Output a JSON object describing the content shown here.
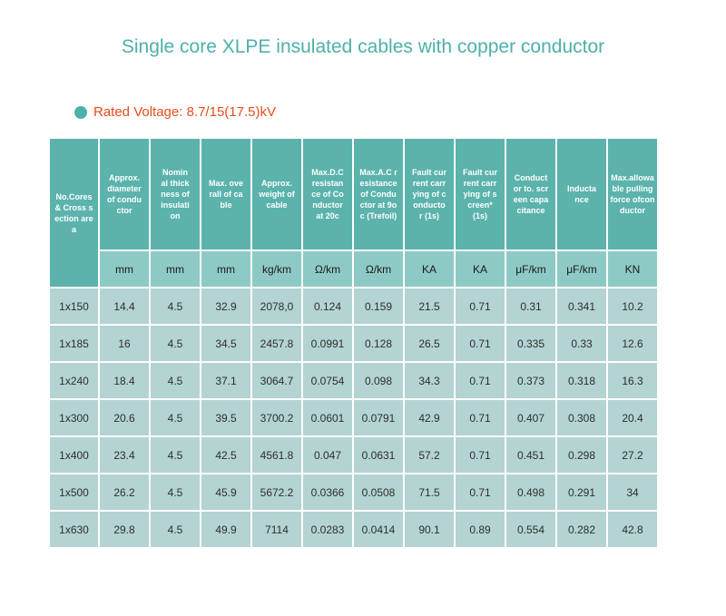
{
  "title": "Single core XLPE insulated cables with copper conductor",
  "rated_voltage": "Rated Voltage: 8.7/15(17.5)kV",
  "colors": {
    "accent": "#4db0ab",
    "header": "#5bb3ac",
    "unit_row": "#8ecac5",
    "cell": "#b3d4d2",
    "red_text": "#e84c1c"
  },
  "table": {
    "headers": [
      "No.Cores & Cross section area",
      "Approx. diameter of conductor",
      "Nominal thickness of insulation",
      "Max. overall of cable",
      "Approx. weight of cable",
      "Max.D.C resistance of Conductor at 20c",
      "Max.A.C resistance of Conductor at 9oc (Trefoil)",
      "Fault current carrying of conductor (1s)",
      "Fault current carrying of screen* (1s)",
      "Conductor to. screen capacitance",
      "Inductance",
      "Max.allowable pulling force ofconductor"
    ],
    "units": [
      "mm",
      "mm",
      "mm",
      "kg/km",
      "Ω/km",
      "Ω/km",
      "KA",
      "KA",
      "μF/km",
      "μF/km",
      "KN"
    ],
    "rows": [
      [
        "1x150",
        "14.4",
        "4.5",
        "32.9",
        "2078,0",
        "0.124",
        "0.159",
        "21.5",
        "0.71",
        "0.31",
        "0.341",
        "10.2"
      ],
      [
        "1x185",
        "16",
        "4.5",
        "34.5",
        "2457.8",
        "0.0991",
        "0.128",
        "26.5",
        "0.71",
        "0.335",
        "0.33",
        "12.6"
      ],
      [
        "1x240",
        "18.4",
        "4.5",
        "37.1",
        "3064.7",
        "0.0754",
        "0.098",
        "34.3",
        "0.71",
        "0.373",
        "0.318",
        "16.3"
      ],
      [
        "1x300",
        "20.6",
        "4.5",
        "39.5",
        "3700.2",
        "0.0601",
        "0.0791",
        "42.9",
        "0.71",
        "0.407",
        "0.308",
        "20.4"
      ],
      [
        "1x400",
        "23.4",
        "4.5",
        "42.5",
        "4561.8",
        "0.047",
        "0.0631",
        "57.2",
        "0.71",
        "0.451",
        "0.298",
        "27.2"
      ],
      [
        "1x500",
        "26.2",
        "4.5",
        "45.9",
        "5672.2",
        "0.0366",
        "0.0508",
        "71.5",
        "0.71",
        "0.498",
        "0.291",
        "34"
      ],
      [
        "1x630",
        "29.8",
        "4.5",
        "49.9",
        "7114",
        "0.0283",
        "0.0414",
        "90.1",
        "0.89",
        "0.554",
        "0.282",
        "42.8"
      ]
    ]
  }
}
